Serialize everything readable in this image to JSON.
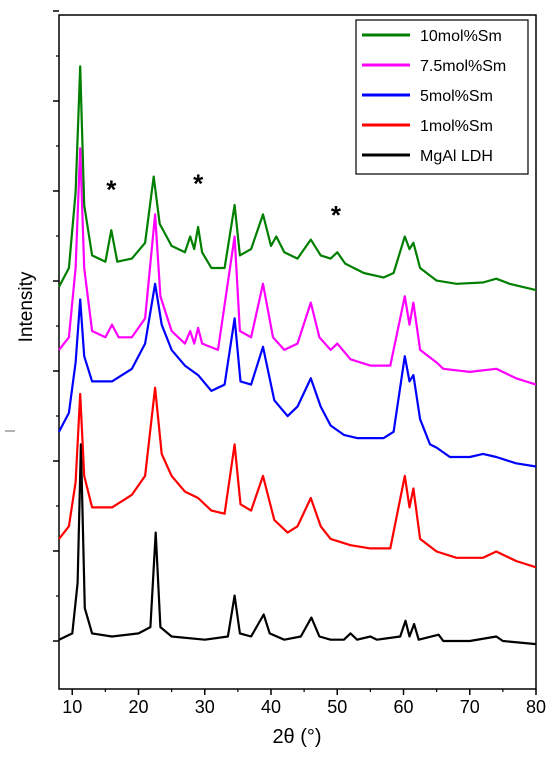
{
  "chart_data": {
    "type": "line",
    "title": "",
    "xlabel": "2θ (°)",
    "ylabel": "Intensity",
    "xlim": [
      8,
      80
    ],
    "xticks": [
      "10",
      "20",
      "30",
      "40",
      "50",
      "60",
      "70",
      "80"
    ],
    "grid": false,
    "legend_position": "top-right",
    "series": [
      {
        "name": "10mol%Sm",
        "color": "#007f00",
        "points": [
          [
            8,
            0.57
          ],
          [
            9.5,
            0.6
          ],
          [
            10.5,
            0.72
          ],
          [
            11.2,
            0.92
          ],
          [
            11.8,
            0.7
          ],
          [
            13,
            0.62
          ],
          [
            15,
            0.61
          ],
          [
            15.9,
            0.66
          ],
          [
            16.8,
            0.61
          ],
          [
            19,
            0.615
          ],
          [
            21,
            0.64
          ],
          [
            22.3,
            0.745
          ],
          [
            23.2,
            0.67
          ],
          [
            25,
            0.635
          ],
          [
            27,
            0.625
          ],
          [
            27.8,
            0.65
          ],
          [
            28.4,
            0.63
          ],
          [
            29,
            0.665
          ],
          [
            29.6,
            0.625
          ],
          [
            31,
            0.6
          ],
          [
            33,
            0.6
          ],
          [
            34.5,
            0.7
          ],
          [
            35.3,
            0.62
          ],
          [
            37,
            0.63
          ],
          [
            38.8,
            0.685
          ],
          [
            40,
            0.635
          ],
          [
            40.8,
            0.65
          ],
          [
            42,
            0.625
          ],
          [
            44,
            0.615
          ],
          [
            46,
            0.645
          ],
          [
            47.5,
            0.62
          ],
          [
            49,
            0.615
          ],
          [
            50,
            0.625
          ],
          [
            51.2,
            0.607
          ],
          [
            54,
            0.592
          ],
          [
            57,
            0.585
          ],
          [
            58.5,
            0.592
          ],
          [
            60.2,
            0.65
          ],
          [
            60.9,
            0.63
          ],
          [
            61.5,
            0.64
          ],
          [
            62.5,
            0.6
          ],
          [
            65,
            0.58
          ],
          [
            68,
            0.575
          ],
          [
            72,
            0.577
          ],
          [
            74,
            0.583
          ],
          [
            76,
            0.575
          ],
          [
            80,
            0.565
          ]
        ]
      },
      {
        "name": "7.5mol%Sm",
        "color": "#ff00ff",
        "points": [
          [
            8,
            0.47
          ],
          [
            9.5,
            0.49
          ],
          [
            10.5,
            0.6
          ],
          [
            11.2,
            0.79
          ],
          [
            11.8,
            0.6
          ],
          [
            13,
            0.5
          ],
          [
            15,
            0.49
          ],
          [
            16,
            0.51
          ],
          [
            17,
            0.49
          ],
          [
            19,
            0.49
          ],
          [
            21,
            0.52
          ],
          [
            22.5,
            0.685
          ],
          [
            23.3,
            0.555
          ],
          [
            25,
            0.5
          ],
          [
            27,
            0.48
          ],
          [
            27.8,
            0.5
          ],
          [
            28.4,
            0.48
          ],
          [
            29,
            0.505
          ],
          [
            29.6,
            0.48
          ],
          [
            32,
            0.47
          ],
          [
            34.5,
            0.65
          ],
          [
            35.3,
            0.5
          ],
          [
            37,
            0.49
          ],
          [
            38.8,
            0.575
          ],
          [
            40.3,
            0.49
          ],
          [
            42,
            0.47
          ],
          [
            44,
            0.48
          ],
          [
            46,
            0.545
          ],
          [
            47.3,
            0.49
          ],
          [
            49,
            0.47
          ],
          [
            50,
            0.48
          ],
          [
            52,
            0.455
          ],
          [
            55,
            0.445
          ],
          [
            58,
            0.445
          ],
          [
            60.2,
            0.555
          ],
          [
            60.9,
            0.51
          ],
          [
            61.5,
            0.545
          ],
          [
            62.5,
            0.47
          ],
          [
            65,
            0.45
          ],
          [
            66,
            0.44
          ],
          [
            70,
            0.435
          ],
          [
            74,
            0.44
          ],
          [
            77,
            0.425
          ],
          [
            80,
            0.415
          ]
        ]
      },
      {
        "name": "5mol%Sm",
        "color": "#0000ff",
        "points": [
          [
            8,
            0.34
          ],
          [
            9.5,
            0.37
          ],
          [
            10.5,
            0.45
          ],
          [
            11.2,
            0.55
          ],
          [
            11.8,
            0.46
          ],
          [
            13,
            0.42
          ],
          [
            16,
            0.42
          ],
          [
            19,
            0.44
          ],
          [
            21,
            0.48
          ],
          [
            22.5,
            0.575
          ],
          [
            23.5,
            0.51
          ],
          [
            25,
            0.47
          ],
          [
            27,
            0.445
          ],
          [
            29,
            0.43
          ],
          [
            31,
            0.405
          ],
          [
            33,
            0.415
          ],
          [
            34.5,
            0.52
          ],
          [
            35.4,
            0.42
          ],
          [
            37,
            0.415
          ],
          [
            38.8,
            0.475
          ],
          [
            40.5,
            0.39
          ],
          [
            42.5,
            0.365
          ],
          [
            44,
            0.38
          ],
          [
            46,
            0.425
          ],
          [
            47.5,
            0.38
          ],
          [
            49,
            0.35
          ],
          [
            51,
            0.335
          ],
          [
            53,
            0.33
          ],
          [
            55,
            0.33
          ],
          [
            57,
            0.33
          ],
          [
            58.5,
            0.34
          ],
          [
            60.2,
            0.46
          ],
          [
            60.9,
            0.42
          ],
          [
            61.5,
            0.43
          ],
          [
            62.5,
            0.36
          ],
          [
            64,
            0.32
          ],
          [
            65,
            0.315
          ],
          [
            67,
            0.3
          ],
          [
            70,
            0.3
          ],
          [
            72,
            0.305
          ],
          [
            74,
            0.3
          ],
          [
            77,
            0.29
          ],
          [
            80,
            0.285
          ]
        ]
      },
      {
        "name": "1mol%Sm",
        "color": "#ff0000",
        "points": [
          [
            8,
            0.17
          ],
          [
            9.5,
            0.19
          ],
          [
            10.5,
            0.26
          ],
          [
            11.2,
            0.4
          ],
          [
            11.8,
            0.27
          ],
          [
            13,
            0.22
          ],
          [
            16,
            0.22
          ],
          [
            19,
            0.24
          ],
          [
            21,
            0.27
          ],
          [
            22.5,
            0.41
          ],
          [
            23.5,
            0.305
          ],
          [
            25,
            0.27
          ],
          [
            27,
            0.245
          ],
          [
            29,
            0.235
          ],
          [
            31,
            0.215
          ],
          [
            33,
            0.21
          ],
          [
            34.5,
            0.32
          ],
          [
            35.4,
            0.225
          ],
          [
            37,
            0.215
          ],
          [
            38.8,
            0.27
          ],
          [
            40.5,
            0.2
          ],
          [
            42.5,
            0.18
          ],
          [
            44,
            0.19
          ],
          [
            46,
            0.235
          ],
          [
            47.5,
            0.19
          ],
          [
            49,
            0.17
          ],
          [
            52,
            0.16
          ],
          [
            55,
            0.155
          ],
          [
            58,
            0.155
          ],
          [
            60.2,
            0.27
          ],
          [
            60.9,
            0.22
          ],
          [
            61.5,
            0.25
          ],
          [
            62.5,
            0.17
          ],
          [
            65,
            0.15
          ],
          [
            68,
            0.14
          ],
          [
            72,
            0.14
          ],
          [
            74,
            0.15
          ],
          [
            77,
            0.135
          ],
          [
            80,
            0.125
          ]
        ]
      },
      {
        "name": "MgAl LDH",
        "color": "#000000",
        "points": [
          [
            8,
            0.01
          ],
          [
            10,
            0.02
          ],
          [
            10.8,
            0.1
          ],
          [
            11.3,
            0.32
          ],
          [
            11.9,
            0.06
          ],
          [
            13,
            0.02
          ],
          [
            16,
            0.015
          ],
          [
            20,
            0.02
          ],
          [
            21.8,
            0.03
          ],
          [
            22.6,
            0.18
          ],
          [
            23.3,
            0.03
          ],
          [
            25,
            0.015
          ],
          [
            30,
            0.01
          ],
          [
            33.5,
            0.015
          ],
          [
            34.5,
            0.08
          ],
          [
            35.3,
            0.02
          ],
          [
            37,
            0.015
          ],
          [
            38.9,
            0.05
          ],
          [
            39.8,
            0.02
          ],
          [
            42,
            0.01
          ],
          [
            44.5,
            0.015
          ],
          [
            46.1,
            0.045
          ],
          [
            47.3,
            0.015
          ],
          [
            49,
            0.01
          ],
          [
            51,
            0.01
          ],
          [
            52,
            0.02
          ],
          [
            53,
            0.01
          ],
          [
            55,
            0.015
          ],
          [
            56,
            0.01
          ],
          [
            59.5,
            0.015
          ],
          [
            60.3,
            0.04
          ],
          [
            60.9,
            0.015
          ],
          [
            61.6,
            0.035
          ],
          [
            62.3,
            0.01
          ],
          [
            65.3,
            0.018
          ],
          [
            66,
            0.008
          ],
          [
            70,
            0.008
          ],
          [
            74,
            0.015
          ],
          [
            75,
            0.008
          ],
          [
            80,
            0.003
          ]
        ]
      }
    ],
    "annotations": [
      {
        "text": "*",
        "x": 15.9,
        "y": 0.71
      },
      {
        "text": "*",
        "x": 29,
        "y": 0.72
      },
      {
        "text": "*",
        "x": 49.8,
        "y": 0.67
      }
    ]
  }
}
